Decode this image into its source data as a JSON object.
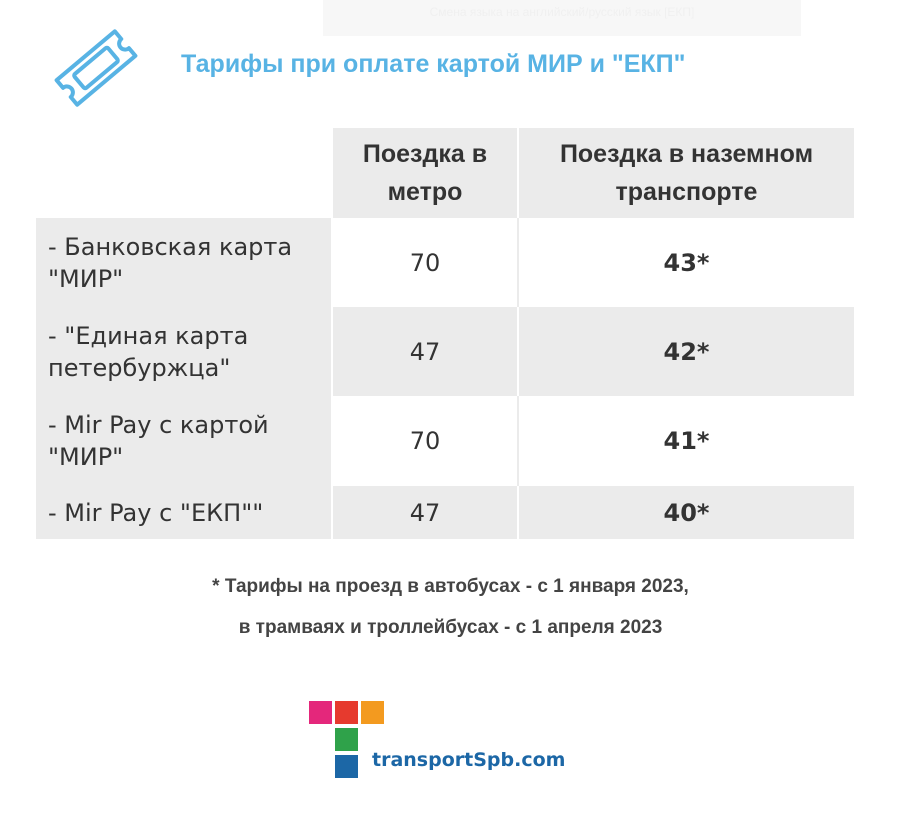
{
  "banner": {
    "text": "Смена языка на английский/русский язык  [ЕКП]"
  },
  "header": {
    "icon": "ticket-icon",
    "title": "Тарифы при оплате картой МИР и \"ЕКП\""
  },
  "table": {
    "columns": [
      "",
      "Поездка в метро",
      "Поездка в наземном транспорте"
    ],
    "rows": [
      {
        "label": "- Банковская карта \"МИР\"",
        "metro": "70",
        "ground": "43*"
      },
      {
        "label": "- \"Единая карта петербуржца\"",
        "metro": "47",
        "ground": "42*"
      },
      {
        "label": "- Mir Pay с картой \"МИР\"",
        "metro": "70",
        "ground": "41*"
      },
      {
        "label": "- Mir Pay с \"ЕКП\"\"",
        "metro": "47",
        "ground": "40*"
      }
    ]
  },
  "footnote": {
    "line1": "* Тарифы на проезд в автобусах - с 1 января 2023,",
    "line2": "в трамваях и троллейбусах - с 1 апреля 2023"
  },
  "logo": {
    "text": "transportSpb.com",
    "colors": [
      "#e4277b",
      "#e63a2e",
      "#f39a1f",
      "#2fa24a",
      "#1c67a6"
    ]
  },
  "colors": {
    "title": "#58b3e4",
    "table_grey": "#ebebeb"
  }
}
